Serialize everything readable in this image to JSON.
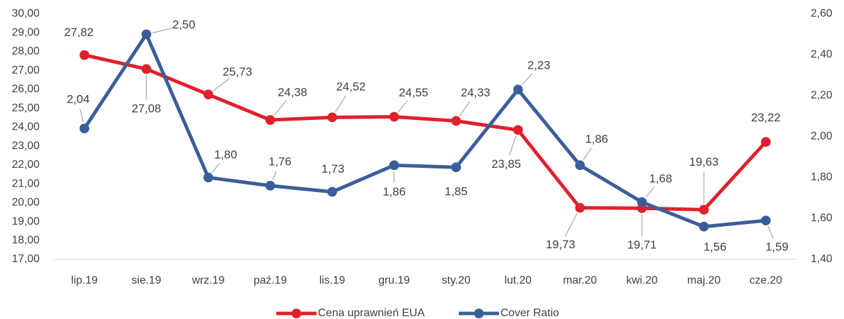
{
  "chart_data": {
    "type": "line",
    "categories": [
      "lip.19",
      "sie.19",
      "wrz.19",
      "paź.19",
      "lis.19",
      "gru.19",
      "sty.20",
      "lut.20",
      "mar.20",
      "kwi.20",
      "maj.20",
      "cze.20"
    ],
    "series": [
      {
        "name": "Cena uprawnień EUA",
        "color": "#e0202d",
        "axis": "y",
        "values": [
          27.82,
          27.08,
          25.73,
          24.38,
          24.52,
          24.55,
          24.33,
          23.85,
          19.73,
          19.71,
          19.63,
          23.22
        ],
        "value_labels": [
          "27,82",
          "27,08",
          "25,73",
          "24,38",
          "24,52",
          "24,55",
          "24,33",
          "23,85",
          "19,73",
          "19,71",
          "19,63",
          "23,22"
        ]
      },
      {
        "name": "Cover Ratio",
        "color": "#3a5e99",
        "axis": "y2",
        "values": [
          2.04,
          2.5,
          1.8,
          1.76,
          1.73,
          1.86,
          1.85,
          2.23,
          1.86,
          1.68,
          1.56,
          1.59
        ],
        "value_labels": [
          "2,04",
          "2,50",
          "1,80",
          "1,76",
          "1,73",
          "1,86",
          "1,85",
          "2,23",
          "1,86",
          "1,68",
          "1,56",
          "1,59"
        ]
      }
    ],
    "ylim": [
      17,
      30
    ],
    "yticks": [
      {
        "value": 17,
        "label": "17,00"
      },
      {
        "value": 18,
        "label": "18,00"
      },
      {
        "value": 19,
        "label": "19,00"
      },
      {
        "value": 20,
        "label": "20,00"
      },
      {
        "value": 21,
        "label": "21,00"
      },
      {
        "value": 22,
        "label": "22,00"
      },
      {
        "value": 23,
        "label": "23,00"
      },
      {
        "value": 24,
        "label": "24,00"
      },
      {
        "value": 25,
        "label": "25,00"
      },
      {
        "value": 26,
        "label": "26,00"
      },
      {
        "value": 27,
        "label": "27,00"
      },
      {
        "value": 28,
        "label": "28,00"
      },
      {
        "value": 29,
        "label": "29,00"
      },
      {
        "value": 30,
        "label": "30,00"
      }
    ],
    "y2lim": [
      1.4,
      2.6
    ],
    "y2ticks": [
      {
        "value": 1.4,
        "label": "1,40"
      },
      {
        "value": 1.6,
        "label": "1,60"
      },
      {
        "value": 1.8,
        "label": "1,80"
      },
      {
        "value": 2.0,
        "label": "2,00"
      },
      {
        "value": 2.2,
        "label": "2,20"
      },
      {
        "value": 2.4,
        "label": "2,40"
      },
      {
        "value": 2.6,
        "label": "2,60"
      }
    ],
    "grid": false,
    "legend": "bottom"
  }
}
